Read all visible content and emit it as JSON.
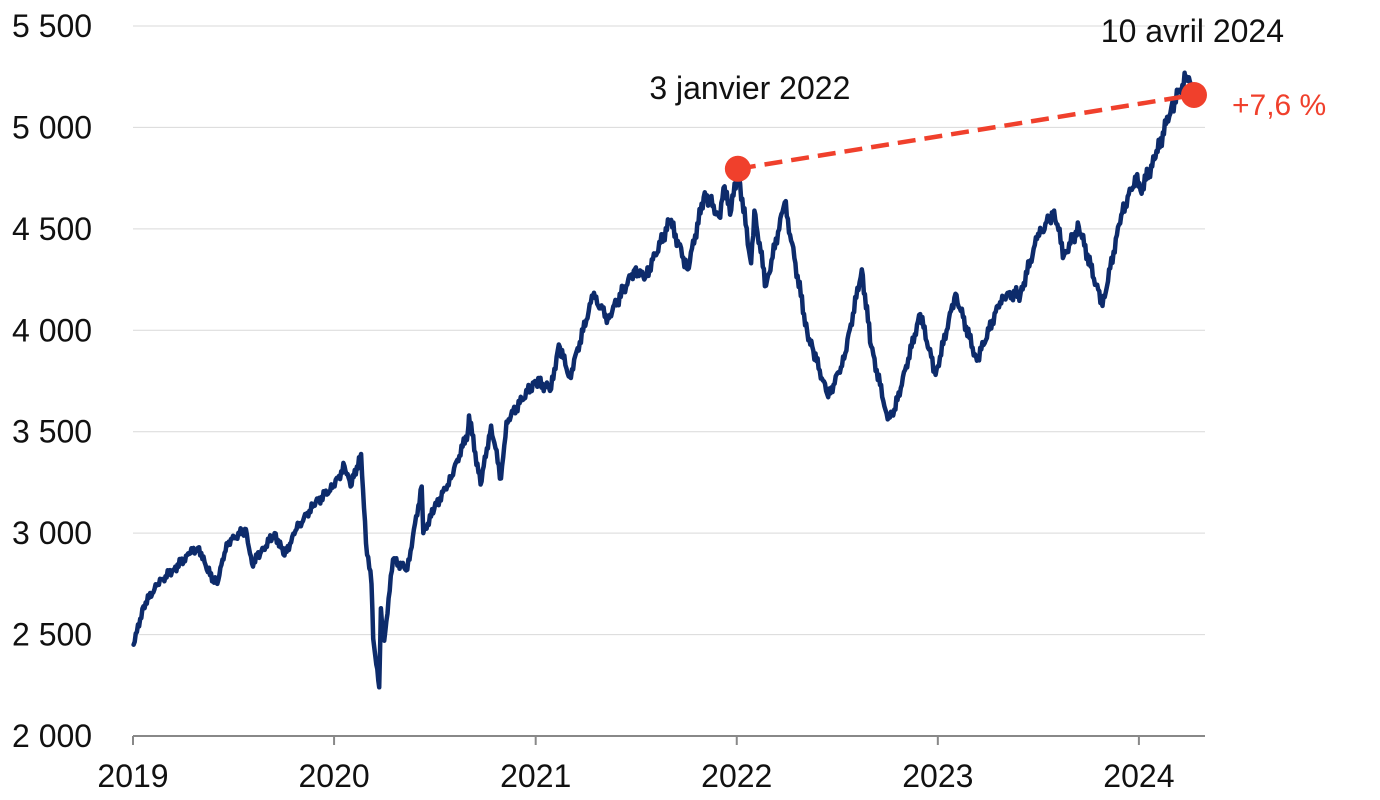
{
  "chart_data": {
    "type": "line",
    "title": "",
    "xlabel": "",
    "ylabel": "",
    "xlim": [
      "2019-01-01",
      "2024-04-30"
    ],
    "ylim": [
      2000,
      5500
    ],
    "grid": "horizontal",
    "x_ticks": [
      {
        "date": "2019-01-01",
        "label": "2019"
      },
      {
        "date": "2020-01-01",
        "label": "2020"
      },
      {
        "date": "2021-01-01",
        "label": "2021"
      },
      {
        "date": "2022-01-01",
        "label": "2022"
      },
      {
        "date": "2023-01-01",
        "label": "2023"
      },
      {
        "date": "2024-01-01",
        "label": "2024"
      }
    ],
    "y_ticks": [
      {
        "value": 2000,
        "label": "2 000"
      },
      {
        "value": 2500,
        "label": "2 500"
      },
      {
        "value": 3000,
        "label": "3 000"
      },
      {
        "value": 3500,
        "label": "3 500"
      },
      {
        "value": 4000,
        "label": "4 000"
      },
      {
        "value": 4500,
        "label": "4 500"
      },
      {
        "value": 5000,
        "label": "5 000"
      },
      {
        "value": 5500,
        "label": "5 500"
      }
    ],
    "series": [
      {
        "color": "#0d2b6b",
        "points": [
          [
            "2019-01-02",
            2450
          ],
          [
            "2019-01-20",
            2640
          ],
          [
            "2019-02-15",
            2750
          ],
          [
            "2019-03-15",
            2820
          ],
          [
            "2019-04-15",
            2900
          ],
          [
            "2019-05-01",
            2930
          ],
          [
            "2019-05-15",
            2820
          ],
          [
            "2019-06-03",
            2750
          ],
          [
            "2019-06-20",
            2950
          ],
          [
            "2019-07-25",
            3020
          ],
          [
            "2019-08-05",
            2850
          ],
          [
            "2019-08-20",
            2900
          ],
          [
            "2019-09-15",
            3000
          ],
          [
            "2019-10-03",
            2890
          ],
          [
            "2019-10-25",
            3020
          ],
          [
            "2019-11-25",
            3140
          ],
          [
            "2019-12-31",
            3230
          ],
          [
            "2020-01-20",
            3330
          ],
          [
            "2020-01-31",
            3230
          ],
          [
            "2020-02-19",
            3390
          ],
          [
            "2020-02-28",
            2950
          ],
          [
            "2020-03-09",
            2750
          ],
          [
            "2020-03-12",
            2480
          ],
          [
            "2020-03-16",
            2390
          ],
          [
            "2020-03-23",
            2240
          ],
          [
            "2020-03-26",
            2630
          ],
          [
            "2020-04-01",
            2470
          ],
          [
            "2020-04-17",
            2870
          ],
          [
            "2020-05-13",
            2820
          ],
          [
            "2020-06-08",
            3230
          ],
          [
            "2020-06-11",
            3000
          ],
          [
            "2020-07-01",
            3120
          ],
          [
            "2020-07-31",
            3270
          ],
          [
            "2020-08-31",
            3500
          ],
          [
            "2020-09-02",
            3580
          ],
          [
            "2020-09-23",
            3240
          ],
          [
            "2020-10-12",
            3530
          ],
          [
            "2020-10-30",
            3270
          ],
          [
            "2020-11-09",
            3550
          ],
          [
            "2020-12-31",
            3750
          ],
          [
            "2021-01-29",
            3710
          ],
          [
            "2021-02-12",
            3930
          ],
          [
            "2021-03-04",
            3770
          ],
          [
            "2021-04-15",
            4170
          ],
          [
            "2021-05-12",
            4060
          ],
          [
            "2021-06-30",
            4300
          ],
          [
            "2021-07-19",
            4260
          ],
          [
            "2021-09-02",
            4540
          ],
          [
            "2021-10-04",
            4300
          ],
          [
            "2021-11-04",
            4680
          ],
          [
            "2021-11-30",
            4560
          ],
          [
            "2021-12-10",
            4710
          ],
          [
            "2021-12-20",
            4570
          ],
          [
            "2022-01-03",
            4796
          ],
          [
            "2022-01-27",
            4330
          ],
          [
            "2022-02-02",
            4590
          ],
          [
            "2022-02-23",
            4220
          ],
          [
            "2022-03-29",
            4630
          ],
          [
            "2022-05-09",
            3990
          ],
          [
            "2022-05-20",
            3900
          ],
          [
            "2022-06-16",
            3670
          ],
          [
            "2022-07-15",
            3860
          ],
          [
            "2022-08-16",
            4300
          ],
          [
            "2022-09-02",
            3920
          ],
          [
            "2022-09-30",
            3590
          ],
          [
            "2022-10-12",
            3580
          ],
          [
            "2022-11-30",
            4080
          ],
          [
            "2022-12-28",
            3780
          ],
          [
            "2023-02-02",
            4180
          ],
          [
            "2023-03-13",
            3850
          ],
          [
            "2023-04-28",
            4170
          ],
          [
            "2023-05-31",
            4180
          ],
          [
            "2023-06-30",
            4450
          ],
          [
            "2023-07-31",
            4590
          ],
          [
            "2023-08-18",
            4370
          ],
          [
            "2023-09-14",
            4510
          ],
          [
            "2023-10-27",
            4120
          ],
          [
            "2023-11-30",
            4570
          ],
          [
            "2023-12-29",
            4770
          ],
          [
            "2024-01-04",
            4690
          ],
          [
            "2024-01-31",
            4850
          ],
          [
            "2024-02-29",
            5100
          ],
          [
            "2024-03-28",
            5250
          ],
          [
            "2024-04-10",
            5160
          ]
        ]
      }
    ],
    "highlight": {
      "color": "#f0402c",
      "start": {
        "date": "2022-01-03",
        "value": 4796,
        "label": "3 janvier 2022"
      },
      "end": {
        "date": "2024-04-10",
        "value": 5160,
        "label": "10 avril 2024"
      },
      "change_label": "+7,6 %"
    }
  }
}
